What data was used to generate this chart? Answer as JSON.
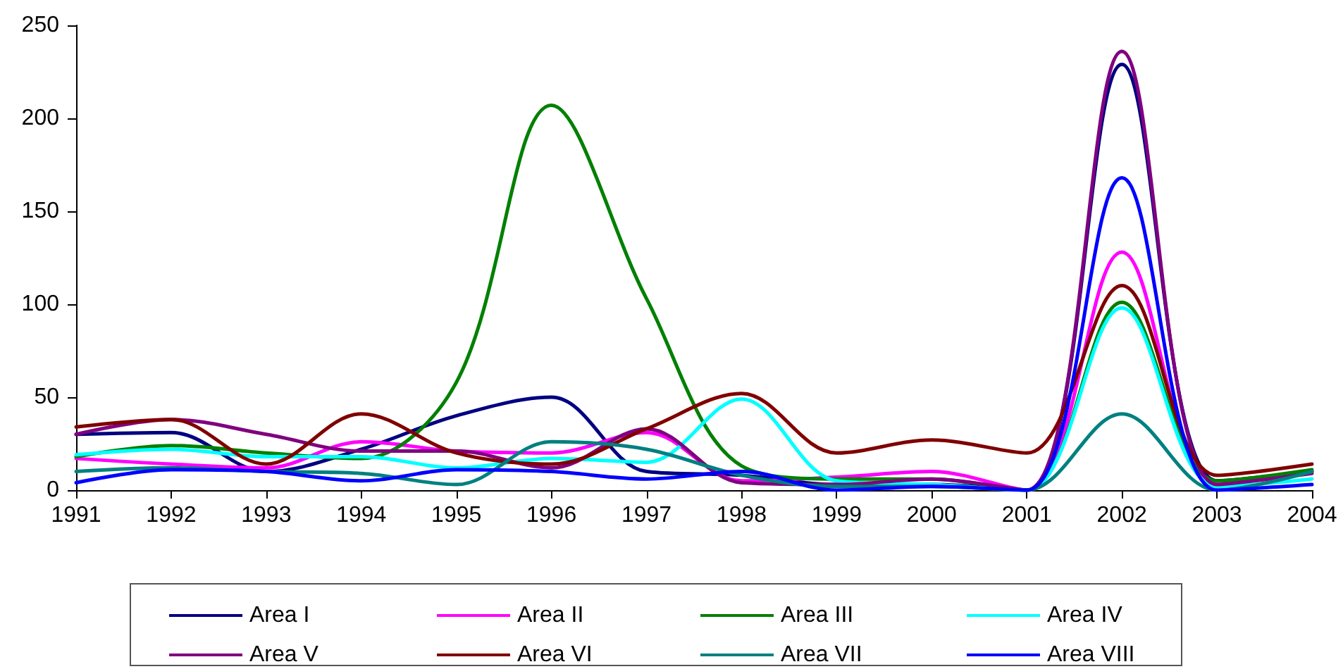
{
  "chart_data": {
    "type": "line",
    "x": [
      1991,
      1992,
      1993,
      1994,
      1995,
      1996,
      1997,
      1998,
      1999,
      2000,
      2001,
      2002,
      2003,
      2004
    ],
    "series": [
      {
        "name": "Area I",
        "color": "#000080",
        "values": [
          30,
          31,
          10,
          22,
          40,
          50,
          10,
          8,
          3,
          3,
          0,
          229,
          5,
          10
        ]
      },
      {
        "name": "Area II",
        "color": "#ff00ff",
        "values": [
          17,
          14,
          12,
          26,
          21,
          20,
          31,
          5,
          7,
          10,
          0,
          128,
          3,
          10
        ]
      },
      {
        "name": "Area III",
        "color": "#008000",
        "values": [
          18,
          24,
          20,
          17,
          58,
          207,
          103,
          13,
          6,
          6,
          0,
          101,
          5,
          11
        ]
      },
      {
        "name": "Area IV",
        "color": "#00ffff",
        "values": [
          19,
          22,
          18,
          18,
          12,
          17,
          15,
          49,
          5,
          3,
          0,
          98,
          2,
          6
        ]
      },
      {
        "name": "Area V",
        "color": "#800080",
        "values": [
          30,
          38,
          30,
          21,
          21,
          12,
          33,
          4,
          3,
          6,
          0,
          236,
          3,
          9
        ]
      },
      {
        "name": "Area VI",
        "color": "#800000",
        "values": [
          34,
          38,
          14,
          41,
          20,
          14,
          33,
          52,
          20,
          27,
          20,
          110,
          8,
          14
        ]
      },
      {
        "name": "Area VII",
        "color": "#008080",
        "values": [
          10,
          12,
          10,
          9,
          3,
          26,
          22,
          8,
          2,
          2,
          0,
          41,
          0,
          10
        ]
      },
      {
        "name": "Area VIII",
        "color": "#0000ff",
        "values": [
          4,
          11,
          10,
          5,
          11,
          10,
          6,
          10,
          0,
          2,
          0,
          168,
          0,
          3
        ]
      }
    ],
    "xlim": [
      1991,
      2004
    ],
    "xticks": [
      1991,
      1992,
      1993,
      1994,
      1995,
      1996,
      1997,
      1998,
      1999,
      2000,
      2001,
      2002,
      2003,
      2004
    ],
    "ylim": [
      0,
      250
    ],
    "yticks": [
      0,
      50,
      100,
      150,
      200,
      250
    ],
    "grid": false,
    "legend": "bottom",
    "marker": "none",
    "line_style": "solid"
  }
}
